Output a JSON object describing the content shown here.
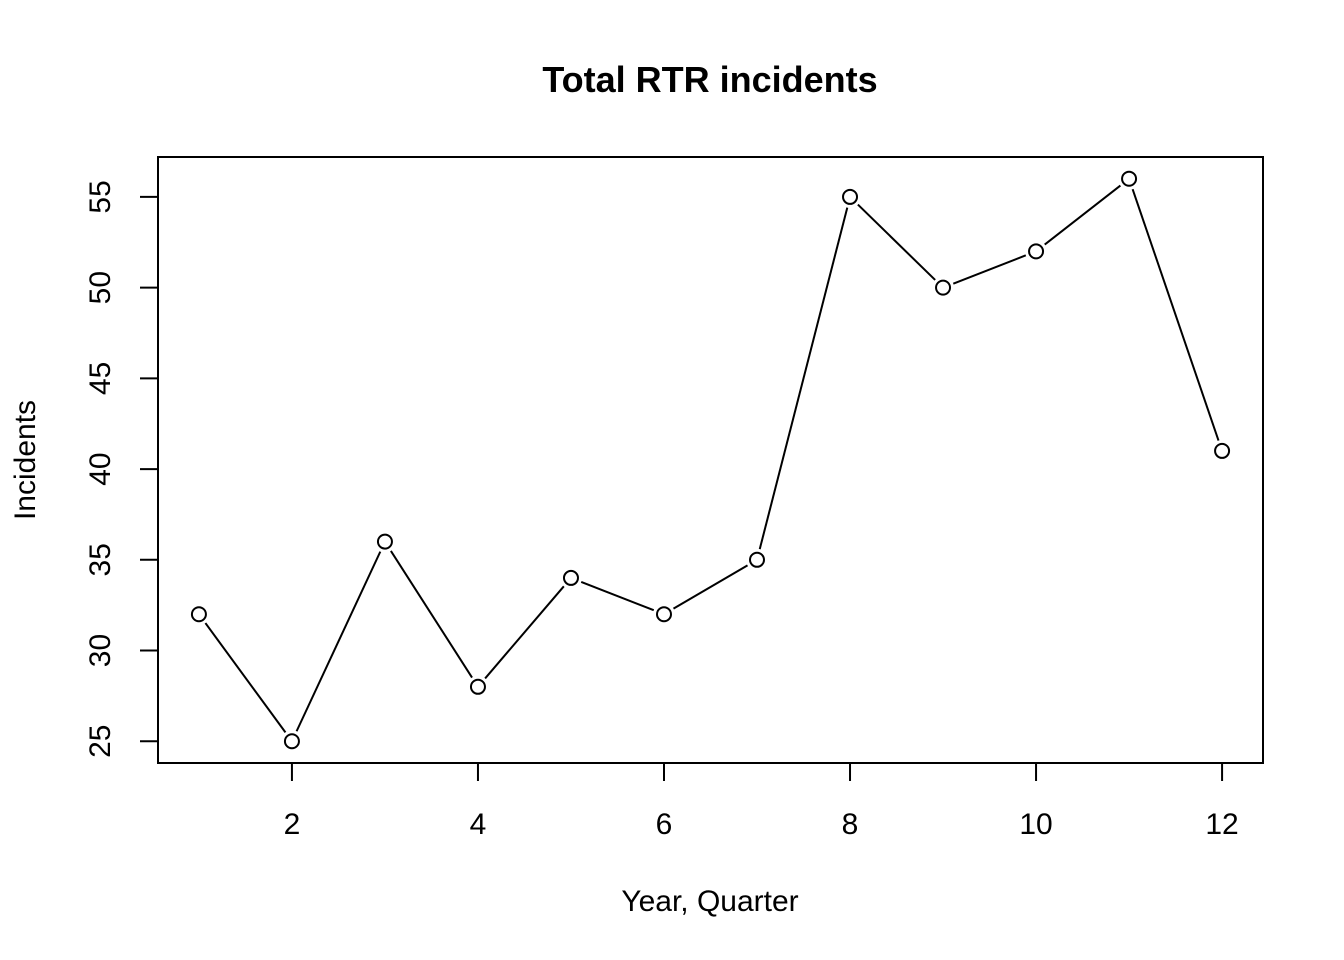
{
  "chart_data": {
    "type": "line",
    "title": "Total RTR incidents",
    "xlabel": "Year, Quarter",
    "ylabel": "Incidents",
    "x": [
      1,
      2,
      3,
      4,
      5,
      6,
      7,
      8,
      9,
      10,
      11,
      12
    ],
    "series": [
      {
        "values": [
          32,
          25,
          36,
          28,
          34,
          32,
          35,
          55,
          50,
          52,
          56,
          41
        ]
      }
    ],
    "xlim": [
      0.56,
      12.44
    ],
    "ylim": [
      23.8,
      57.2
    ],
    "x_ticks": [
      2,
      4,
      6,
      8,
      10,
      12
    ],
    "y_ticks": [
      25,
      30,
      35,
      40,
      45,
      50,
      55
    ],
    "marker": "open-circle",
    "grid": false,
    "legend": "none",
    "colors": {
      "line": "#000000",
      "marker_fill": "#ffffff",
      "background": "#ffffff"
    }
  }
}
